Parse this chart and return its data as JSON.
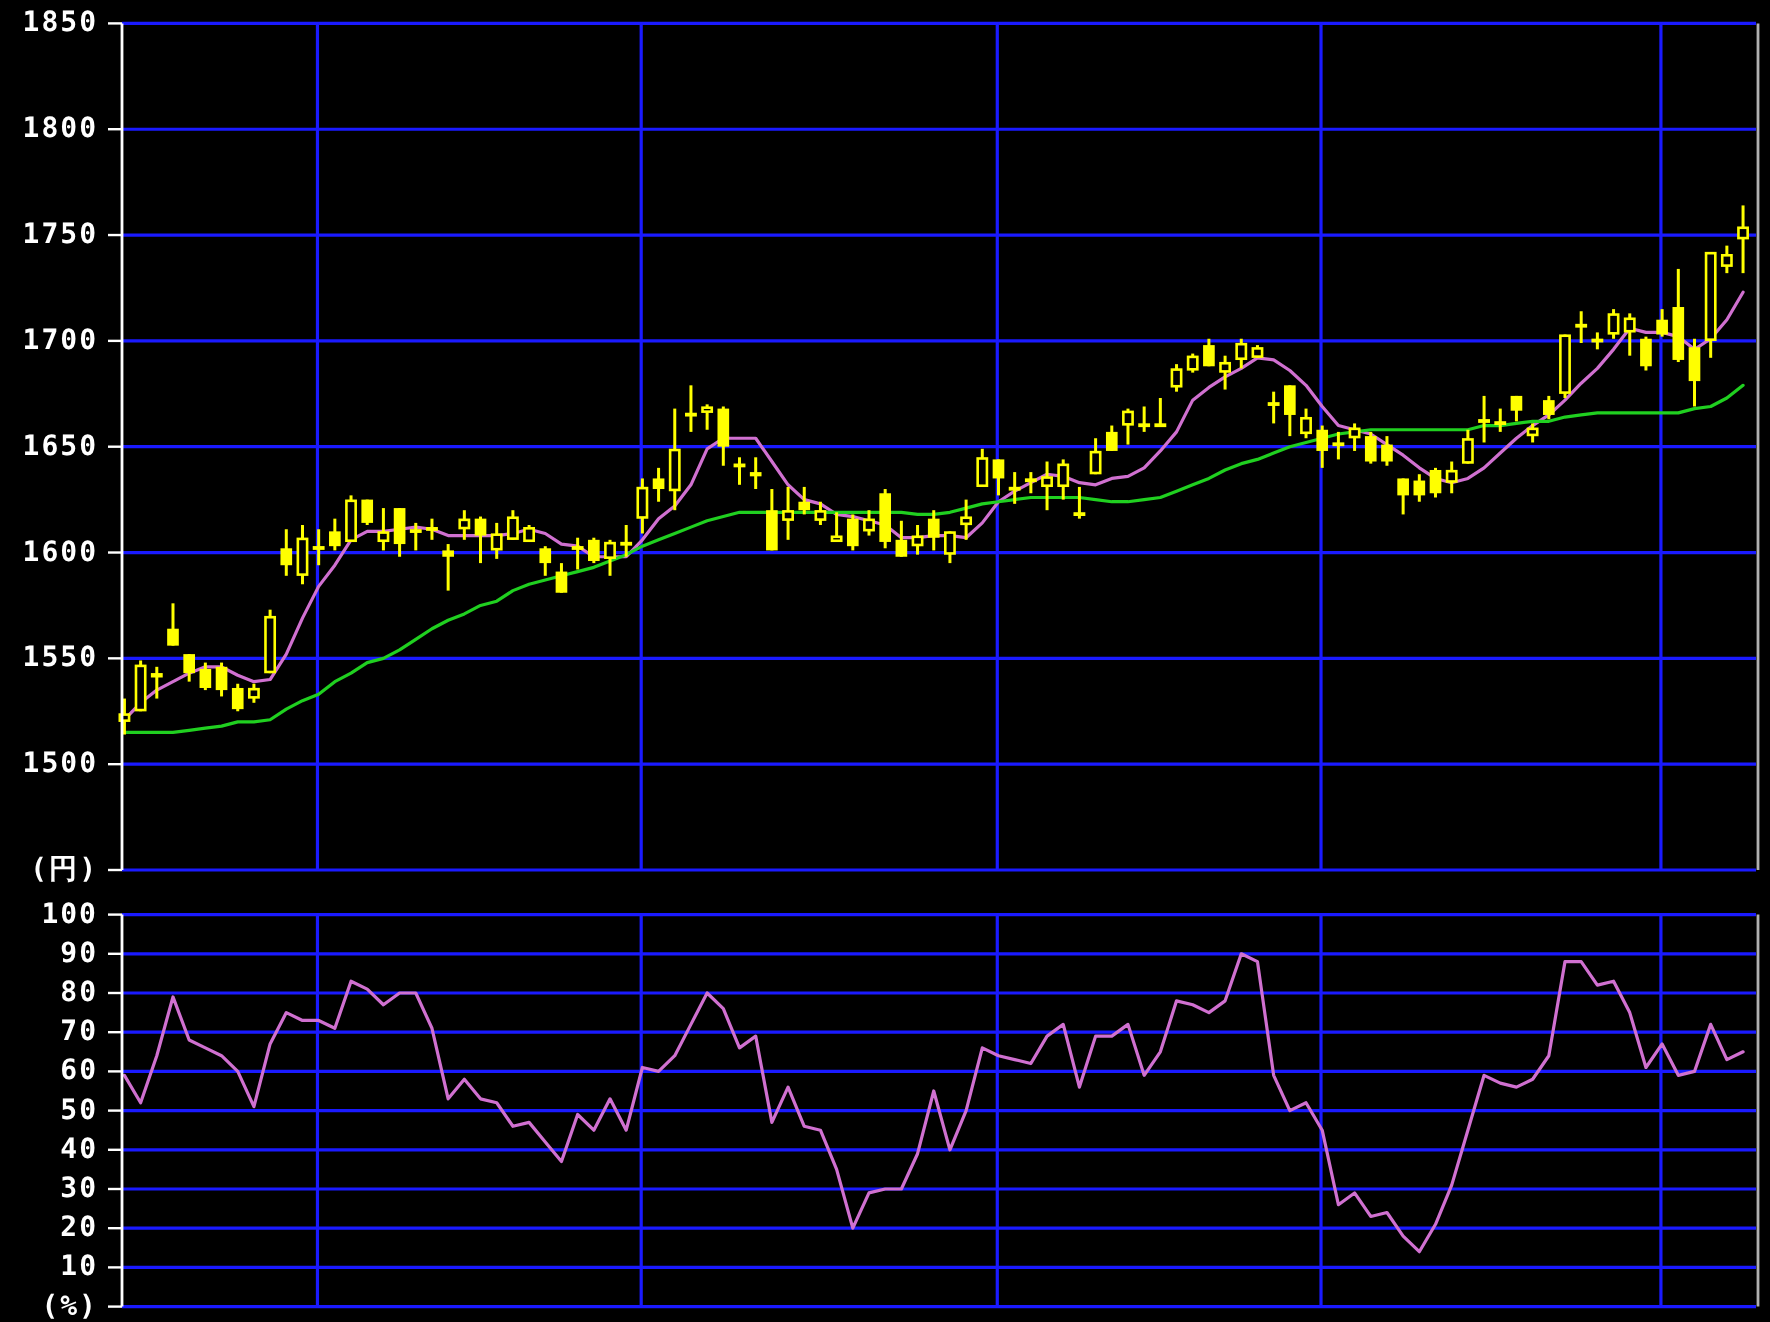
{
  "chart_data": [
    {
      "type": "candlestick",
      "ylabel": "(円)",
      "color": "#ffff00",
      "grid": true,
      "tick_labels": "y",
      "ylim": [
        1450,
        1850
      ],
      "yticks": [
        {
          "value": 1450,
          "label": null
        },
        1500,
        1550,
        1600,
        1650,
        1700,
        1750,
        1800,
        1850
      ],
      "categories": [
        null,
        null,
        null,
        null,
        null,
        null,
        null,
        null,
        null,
        null,
        null,
        null,
        null,
        null,
        null,
        null,
        null,
        null,
        null,
        null,
        null,
        null,
        null,
        null,
        null,
        null,
        null,
        null,
        null,
        null,
        null,
        null,
        null,
        null,
        null,
        null,
        null,
        null,
        null,
        null,
        null,
        null,
        null,
        null,
        null,
        null,
        null,
        null,
        null,
        null,
        null,
        null,
        null,
        null,
        null,
        null,
        null,
        null,
        null,
        null,
        null,
        null,
        null,
        null,
        null,
        null,
        null,
        null,
        null,
        null,
        null,
        null,
        null,
        null,
        null,
        null,
        null,
        null,
        null,
        null,
        null,
        null,
        null,
        null,
        null,
        null,
        null,
        null,
        null,
        null,
        null,
        null,
        null,
        null,
        null,
        null,
        null,
        null,
        null,
        null,
        null
      ],
      "ohlc": [
        [
          1520,
          1531,
          1514,
          1524
        ],
        [
          1525,
          1549,
          1525,
          1547
        ],
        [
          1541,
          1546,
          1531,
          1543
        ],
        [
          1564,
          1576,
          1556,
          1556
        ],
        [
          1552,
          1552,
          1539,
          1543
        ],
        [
          1545,
          1548,
          1535,
          1536
        ],
        [
          1546,
          1548,
          1532,
          1535
        ],
        [
          1536,
          1538,
          1525,
          1526
        ],
        [
          1531,
          1538,
          1529,
          1536
        ],
        [
          1543,
          1573,
          1543,
          1570
        ],
        [
          1602,
          1611,
          1589,
          1594
        ],
        [
          1589,
          1613,
          1585,
          1607
        ],
        [
          1602,
          1611,
          1594,
          1603
        ],
        [
          1610,
          1616,
          1601,
          1603
        ],
        [
          1605,
          1627,
          1605,
          1625
        ],
        [
          1625,
          1625,
          1613,
          1614
        ],
        [
          1605,
          1621,
          1601,
          1610
        ],
        [
          1621,
          1621,
          1598,
          1604
        ],
        [
          1610,
          1614,
          1601,
          1611
        ],
        [
          1611,
          1616,
          1606,
          1612
        ],
        [
          1601,
          1604,
          1582,
          1598
        ],
        [
          1611,
          1620,
          1606,
          1616
        ],
        [
          1616,
          1617,
          1595,
          1608
        ],
        [
          1601,
          1614,
          1597,
          1609
        ],
        [
          1606,
          1620,
          1606,
          1617
        ],
        [
          1605,
          1613,
          1605,
          1612
        ],
        [
          1602,
          1603,
          1589,
          1595
        ],
        [
          1591,
          1595,
          1581,
          1581
        ],
        [
          1602,
          1607,
          1592,
          1603
        ],
        [
          1606,
          1607,
          1595,
          1596
        ],
        [
          1597,
          1606,
          1589,
          1605
        ],
        [
          1604,
          1613,
          1598,
          1605
        ],
        [
          1616,
          1635,
          1609,
          1631
        ],
        [
          1635,
          1640,
          1624,
          1630
        ],
        [
          1629,
          1668,
          1620,
          1649
        ],
        [
          1665,
          1679,
          1657,
          1666
        ],
        [
          1666,
          1670,
          1658,
          1669
        ],
        [
          1668,
          1669,
          1641,
          1650
        ],
        [
          1641,
          1645,
          1632,
          1642
        ],
        [
          1638,
          1645,
          1630,
          1636
        ],
        [
          1620,
          1630,
          1601,
          1601
        ],
        [
          1615,
          1631,
          1606,
          1620
        ],
        [
          1624,
          1631,
          1618,
          1620
        ],
        [
          1615,
          1624,
          1613,
          1620
        ],
        [
          1605,
          1619,
          1605,
          1608
        ],
        [
          1616,
          1618,
          1601,
          1603
        ],
        [
          1610,
          1620,
          1608,
          1616
        ],
        [
          1628,
          1630,
          1602,
          1605
        ],
        [
          1606,
          1615,
          1598,
          1598
        ],
        [
          1603,
          1613,
          1599,
          1608
        ],
        [
          1616,
          1620,
          1601,
          1607
        ],
        [
          1599,
          1610,
          1595,
          1610
        ],
        [
          1613,
          1625,
          1606,
          1617
        ],
        [
          1631,
          1649,
          1631,
          1645
        ],
        [
          1644,
          1644,
          1627,
          1635
        ],
        [
          1630,
          1638,
          1623,
          1631
        ],
        [
          1634,
          1638,
          1628,
          1635
        ],
        [
          1631,
          1643,
          1620,
          1636
        ],
        [
          1631,
          1644,
          1625,
          1642
        ],
        [
          1618,
          1631,
          1616,
          1619
        ],
        [
          1637,
          1654,
          1637,
          1648
        ],
        [
          1657,
          1660,
          1648,
          1648
        ],
        [
          1660,
          1668,
          1651,
          1667
        ],
        [
          1660,
          1669,
          1657,
          1661
        ],
        [
          1660,
          1673,
          1660,
          1661
        ],
        [
          1678,
          1689,
          1676,
          1687
        ],
        [
          1686,
          1694,
          1685,
          1693
        ],
        [
          1698,
          1701,
          1688,
          1688
        ],
        [
          1685,
          1693,
          1677,
          1690
        ],
        [
          1691,
          1701,
          1687,
          1699
        ],
        [
          1692,
          1698,
          1692,
          1697
        ],
        [
          1670,
          1676,
          1661,
          1671
        ],
        [
          1679,
          1679,
          1655,
          1665
        ],
        [
          1656,
          1668,
          1654,
          1664
        ],
        [
          1658,
          1660,
          1640,
          1648
        ],
        [
          1651,
          1657,
          1644,
          1652
        ],
        [
          1654,
          1661,
          1648,
          1659
        ],
        [
          1655,
          1657,
          1642,
          1643
        ],
        [
          1651,
          1655,
          1641,
          1643
        ],
        [
          1635,
          1635,
          1618,
          1627
        ],
        [
          1634,
          1637,
          1624,
          1627
        ],
        [
          1639,
          1640,
          1626,
          1628
        ],
        [
          1633,
          1643,
          1628,
          1639
        ],
        [
          1642,
          1658,
          1642,
          1654
        ],
        [
          1662,
          1674,
          1652,
          1663
        ],
        [
          1661,
          1668,
          1657,
          1662
        ],
        [
          1674,
          1674,
          1662,
          1667
        ],
        [
          1655,
          1661,
          1652,
          1659
        ],
        [
          1672,
          1674,
          1663,
          1665
        ],
        [
          1675,
          1703,
          1673,
          1703
        ],
        [
          1707,
          1714,
          1699,
          1708
        ],
        [
          1700,
          1704,
          1696,
          1701
        ],
        [
          1703,
          1715,
          1701,
          1713
        ],
        [
          1704,
          1713,
          1693,
          1711
        ],
        [
          1701,
          1702,
          1686,
          1688
        ],
        [
          1710,
          1715,
          1702,
          1703
        ],
        [
          1716,
          1734,
          1690,
          1691
        ],
        [
          1697,
          1701,
          1669,
          1681
        ],
        [
          1700,
          1742,
          1692,
          1742
        ],
        [
          1735,
          1745,
          1732,
          1741
        ],
        [
          1748,
          1764,
          1732,
          1754
        ]
      ],
      "series": [
        {
          "type": "line",
          "color": "#d070d0",
          "values": [
            1521,
            1529,
            1535,
            1539,
            1543,
            1546,
            1546,
            1542,
            1539,
            1540,
            1552,
            1569,
            1584,
            1594,
            1606,
            1610,
            1610,
            1611,
            1612,
            1611,
            1608,
            1608,
            1608,
            1608,
            1609,
            1611,
            1609,
            1604,
            1603,
            1598,
            1598,
            1598,
            1606,
            1616,
            1622,
            1632,
            1649,
            1654,
            1654,
            1654,
            1643,
            1632,
            1625,
            1623,
            1618,
            1617,
            1615,
            1613,
            1607,
            1607,
            1608,
            1608,
            1607,
            1614,
            1624,
            1629,
            1633,
            1637,
            1636,
            1633,
            1632,
            1635,
            1636,
            1640,
            1648,
            1657,
            1672,
            1678,
            1683,
            1687,
            1692,
            1691,
            1686,
            1679,
            1669,
            1660,
            1658,
            1656,
            1651,
            1646,
            1640,
            1635,
            1633,
            1635,
            1640,
            1647,
            1654,
            1660,
            1665,
            1672,
            1680,
            1687,
            1696,
            1706,
            1704,
            1704,
            1702,
            1696,
            1701,
            1710,
            1723
          ]
        },
        {
          "type": "line",
          "color": "#20d020",
          "values": [
            1515,
            1515,
            1515,
            1515,
            1516,
            1517,
            1518,
            1520,
            1520,
            1521,
            1526,
            1530,
            1533,
            1539,
            1543,
            1548,
            1550,
            1554,
            1559,
            1564,
            1568,
            1571,
            1575,
            1577,
            1582,
            1585,
            1587,
            1589,
            1591,
            1593,
            1596,
            1599,
            1603,
            1606,
            1609,
            1612,
            1615,
            1617,
            1619,
            1619,
            1619,
            1619,
            1619,
            1619,
            1619,
            1619,
            1619,
            1619,
            1619,
            1618,
            1618,
            1619,
            1621,
            1623,
            1624,
            1625,
            1626,
            1626,
            1626,
            1626,
            1625,
            1624,
            1624,
            1625,
            1626,
            1629,
            1632,
            1635,
            1639,
            1642,
            1644,
            1647,
            1650,
            1652,
            1654,
            1656,
            1657,
            1658,
            1658,
            1658,
            1658,
            1658,
            1658,
            1658,
            1660,
            1660,
            1661,
            1662,
            1662,
            1664,
            1665,
            1666,
            1666,
            1666,
            1666,
            1666,
            1666,
            1668,
            1669,
            1673,
            1679
          ]
        }
      ]
    },
    {
      "type": "line",
      "ylabel": "(%)",
      "grid": true,
      "tick_labels": "y",
      "ylim": [
        0,
        100
      ],
      "yticks": [
        {
          "value": 0,
          "label": null
        },
        10,
        20,
        30,
        40,
        50,
        60,
        70,
        80,
        90,
        100
      ],
      "categories": [
        null,
        null,
        null,
        null,
        null,
        null,
        null,
        null,
        null,
        null,
        null,
        null,
        null,
        null,
        null,
        null,
        null,
        null,
        null,
        null,
        null,
        null,
        null,
        null,
        null,
        null,
        null,
        null,
        null,
        null,
        null,
        null,
        null,
        null,
        null,
        null,
        null,
        null,
        null,
        null,
        null,
        null,
        null,
        null,
        null,
        null,
        null,
        null,
        null,
        null,
        null,
        null,
        null,
        null,
        null,
        null,
        null,
        null,
        null,
        null,
        null,
        null,
        null,
        null,
        null,
        null,
        null,
        null,
        null,
        null,
        null,
        null,
        null,
        null,
        null,
        null,
        null,
        null,
        null,
        null,
        null,
        null,
        null,
        null,
        null,
        null,
        null,
        null,
        null,
        null,
        null,
        null,
        null,
        null,
        null,
        null,
        null,
        null,
        null,
        null,
        null
      ],
      "series": [
        {
          "color": "#d070d0",
          "values": [
            59,
            52,
            64,
            79,
            68,
            66,
            64,
            60,
            51,
            67,
            75,
            73,
            73,
            71,
            83,
            81,
            77,
            80,
            80,
            71,
            53,
            58,
            53,
            52,
            46,
            47,
            42,
            37,
            49,
            45,
            53,
            45,
            61,
            60,
            64,
            72,
            80,
            76,
            66,
            69,
            47,
            56,
            46,
            45,
            35,
            20,
            29,
            30,
            30,
            39,
            55,
            40,
            50,
            66,
            64,
            63,
            62,
            69,
            72,
            56,
            69,
            69,
            72,
            59,
            65,
            78,
            77,
            75,
            78,
            90,
            88,
            59,
            50,
            52,
            45,
            26,
            29,
            23,
            24,
            18,
            14,
            21,
            31,
            45,
            59,
            57,
            56,
            58,
            64,
            88,
            88,
            82,
            83,
            75,
            61,
            67,
            59,
            60,
            72,
            63,
            65
          ]
        }
      ]
    }
  ]
}
